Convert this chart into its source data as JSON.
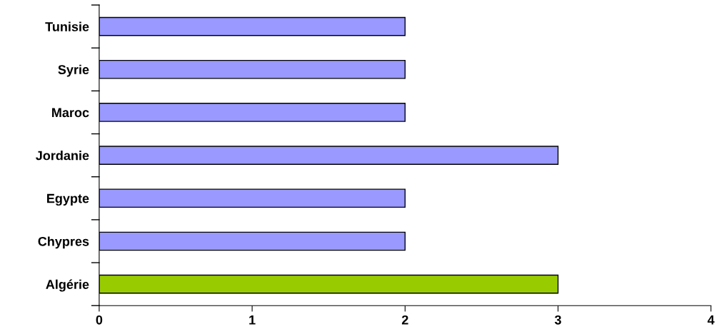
{
  "chart_data": {
    "type": "bar",
    "orientation": "horizontal",
    "categories": [
      "Tunisie",
      "Syrie",
      "Maroc",
      "Jordanie",
      "Egypte",
      "Chypres",
      "Algérie"
    ],
    "values": [
      2,
      2,
      2,
      3,
      2,
      2,
      3
    ],
    "colors": [
      "#9999ff",
      "#9999ff",
      "#9999ff",
      "#9999ff",
      "#9999ff",
      "#9999ff",
      "#99cc00"
    ],
    "xlim": [
      0,
      4
    ],
    "xticks": [
      0,
      1,
      2,
      3,
      4
    ],
    "grid": false
  }
}
